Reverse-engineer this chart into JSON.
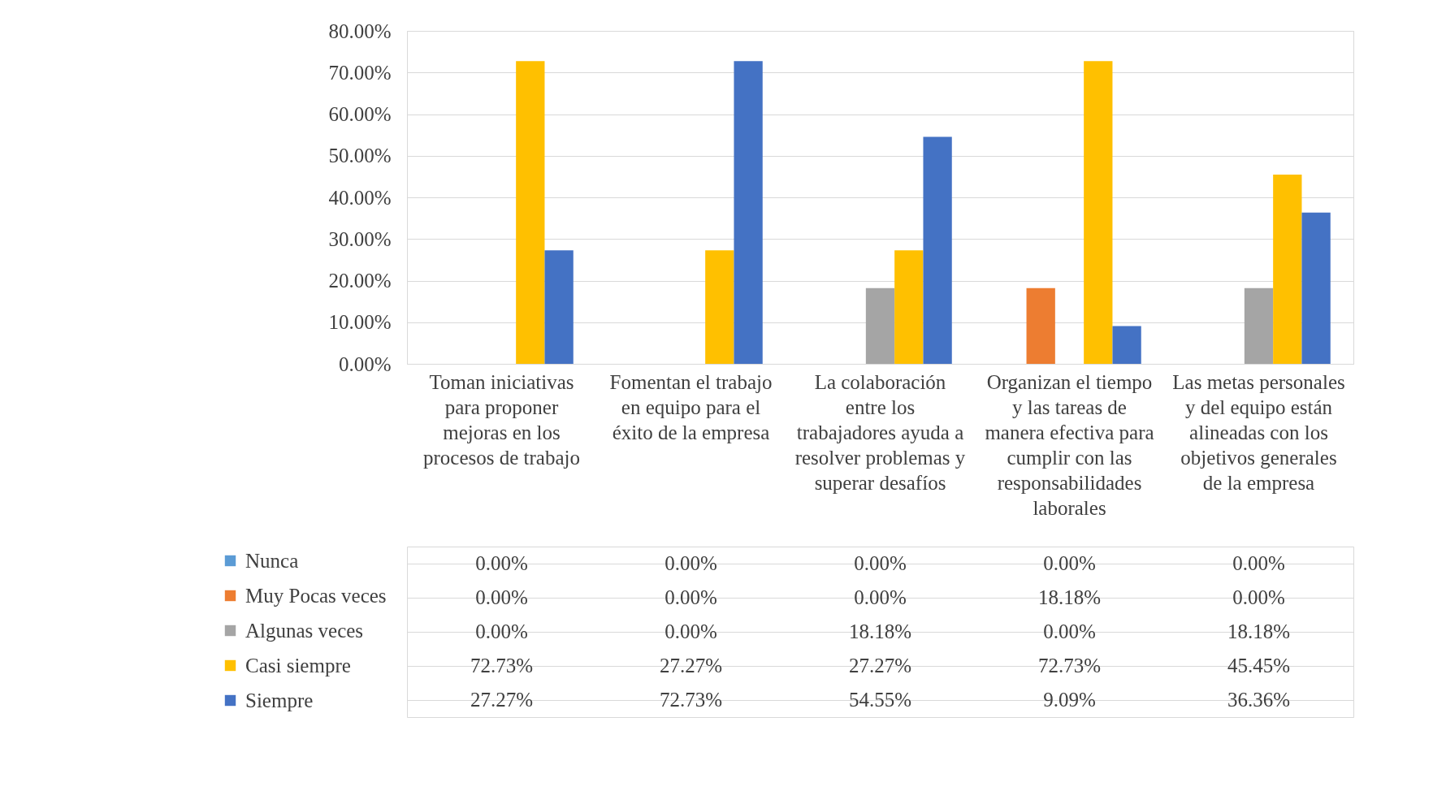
{
  "chart_data": {
    "type": "bar",
    "categories": [
      "Toman iniciativas para proponer mejoras en los procesos de trabajo",
      "Fomentan el trabajo en equipo para el éxito de la empresa",
      "La colaboración entre los trabajadores ayuda a resolver problemas y superar desafíos",
      "Organizan el tiempo y las tareas de manera efectiva para cumplir con las responsabilidades laborales",
      "Las metas personales y del equipo están alineadas con los objetivos generales de la empresa"
    ],
    "series": [
      {
        "name": "Nunca",
        "color": "#5b9bd5",
        "values": [
          0,
          0,
          0,
          0,
          0
        ],
        "value_labels": [
          "0.00%",
          "0.00%",
          "0.00%",
          "0.00%",
          "0.00%"
        ]
      },
      {
        "name": "Muy Pocas veces",
        "color": "#ed7d31",
        "values": [
          0,
          0,
          0,
          18.18,
          0
        ],
        "value_labels": [
          "0.00%",
          "0.00%",
          "0.00%",
          "18.18%",
          "0.00%"
        ]
      },
      {
        "name": "Algunas veces",
        "color": "#a5a5a5",
        "values": [
          0,
          0,
          18.18,
          0,
          18.18
        ],
        "value_labels": [
          "0.00%",
          "0.00%",
          "18.18%",
          "0.00%",
          "18.18%"
        ]
      },
      {
        "name": "Casi siempre",
        "color": "#ffc000",
        "values": [
          72.73,
          27.27,
          27.27,
          72.73,
          45.45
        ],
        "value_labels": [
          "72.73%",
          "27.27%",
          "27.27%",
          "72.73%",
          "45.45%"
        ]
      },
      {
        "name": "Siempre",
        "color": "#4472c4",
        "values": [
          27.27,
          72.73,
          54.55,
          9.09,
          36.36
        ],
        "value_labels": [
          "27.27%",
          "72.73%",
          "54.55%",
          "9.09%",
          "36.36%"
        ]
      }
    ],
    "ylim": [
      0,
      80
    ],
    "yticks": [
      {
        "value": 0,
        "label": "0.00%"
      },
      {
        "value": 10,
        "label": "10.00%"
      },
      {
        "value": 20,
        "label": "20.00%"
      },
      {
        "value": 30,
        "label": "30.00%"
      },
      {
        "value": 40,
        "label": "40.00%"
      },
      {
        "value": 50,
        "label": "50.00%"
      },
      {
        "value": 60,
        "label": "60.00%"
      },
      {
        "value": 70,
        "label": "70.00%"
      },
      {
        "value": 80,
        "label": "80.00%"
      }
    ],
    "grid": "y",
    "legend": "bottom left"
  }
}
